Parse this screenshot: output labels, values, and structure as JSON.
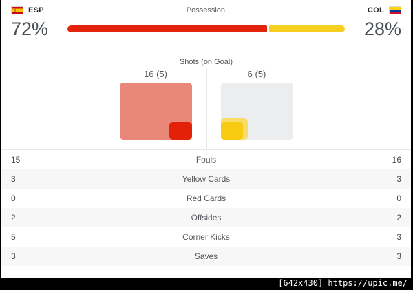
{
  "header": {
    "home_code": "ESP",
    "away_code": "COL",
    "possession_label": "Possession"
  },
  "possession": {
    "home_pct_label": "72%",
    "away_pct_label": "28%",
    "home_value": 72,
    "away_value": 28
  },
  "shots": {
    "title": "Shots (on Goal)",
    "home_label": "16 (5)",
    "away_label": "6 (5)",
    "home_total": 16,
    "home_on_goal": 5,
    "away_total": 6,
    "away_on_goal": 5,
    "max_reference": 16
  },
  "stats": {
    "rows": [
      {
        "home": "15",
        "label": "Fouls",
        "away": "16"
      },
      {
        "home": "3",
        "label": "Yellow Cards",
        "away": "3"
      },
      {
        "home": "0",
        "label": "Red Cards",
        "away": "0"
      },
      {
        "home": "2",
        "label": "Offsides",
        "away": "2"
      },
      {
        "home": "5",
        "label": "Corner Kicks",
        "away": "3"
      },
      {
        "home": "3",
        "label": "Saves",
        "away": "3"
      }
    ]
  },
  "watermark": "[642x430] https://upic.me/",
  "colors": {
    "home_accent": "#e3230c",
    "away_accent": "#f5d021",
    "home_shots_total": "#e98878",
    "home_shots_on_goal": "#e32008",
    "away_shots_total": "#f8dc66",
    "away_shots_on_goal": "#f8cb12",
    "reference_box": "#ecedee",
    "alt_row": "#f7f7f7"
  },
  "chart_data": [
    {
      "type": "bar",
      "title": "Possession",
      "categories": [
        "ESP",
        "COL"
      ],
      "values": [
        72,
        28
      ],
      "unit": "%",
      "colors": [
        "#e3230c",
        "#f5d021"
      ],
      "layout": "single stacked horizontal bar, ESP left red, COL right yellow"
    },
    {
      "type": "area",
      "title": "Shots (on Goal)",
      "series": [
        {
          "name": "ESP",
          "shots": 16,
          "on_goal": 5
        },
        {
          "name": "COL",
          "shots": 6,
          "on_goal": 5
        }
      ],
      "max_reference": 16,
      "layout": "nested proportional squares; ESP anchored bottom-right, COL anchored bottom-left over gray reference box"
    },
    {
      "type": "table",
      "categories": [
        "Fouls",
        "Yellow Cards",
        "Red Cards",
        "Offsides",
        "Corner Kicks",
        "Saves"
      ],
      "series": [
        {
          "name": "ESP",
          "values": [
            15,
            3,
            0,
            2,
            5,
            3
          ]
        },
        {
          "name": "COL",
          "values": [
            16,
            3,
            0,
            2,
            3,
            3
          ]
        }
      ]
    }
  ]
}
